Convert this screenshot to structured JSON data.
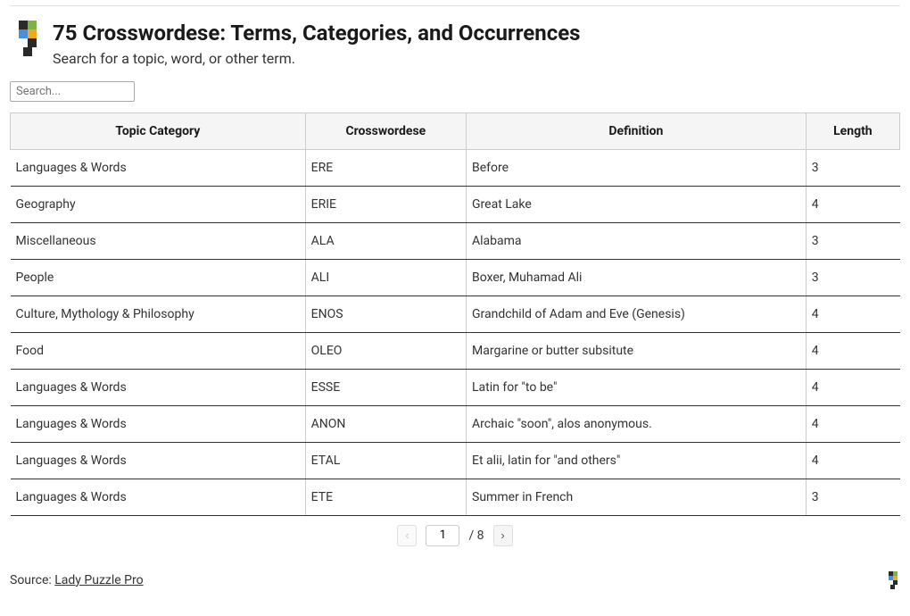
{
  "header": {
    "title": "75 Crosswordese: Terms, Categories, and Occurrences",
    "subtitle": "Search for a topic, word, or other term."
  },
  "search": {
    "placeholder": "Search...",
    "value": ""
  },
  "table": {
    "columns": [
      "Topic Category",
      "Crosswordese",
      "Definition",
      "Length"
    ],
    "rows": [
      [
        "Languages & Words",
        "ERE",
        "Before",
        "3"
      ],
      [
        "Geography",
        "ERIE",
        "Great Lake",
        "4"
      ],
      [
        "Miscellaneous",
        "ALA",
        "Alabama",
        "3"
      ],
      [
        "People",
        "ALI",
        "Boxer, Muhamad Ali",
        "3"
      ],
      [
        "Culture, Mythology & Philosophy",
        "ENOS",
        "Grandchild of Adam and Eve (Genesis)",
        "4"
      ],
      [
        "Food",
        "OLEO",
        "Margarine or butter subsitute",
        "4"
      ],
      [
        "Languages & Words",
        "ESSE",
        "Latin for \"to be\"",
        "4"
      ],
      [
        "Languages & Words",
        "ANON",
        "Archaic \"soon\", alos anonymous.",
        "4"
      ],
      [
        "Languages & Words",
        "ETAL",
        "Et alii, latin for \"and others\"",
        "4"
      ],
      [
        "Languages & Words",
        "ETE",
        "Summer in French",
        "3"
      ]
    ]
  },
  "pagination": {
    "prev_label": "‹",
    "next_label": "›",
    "current_page": "1",
    "total_label": "/ 8"
  },
  "footer": {
    "source_prefix": "Source: ",
    "source_link": "Lady Puzzle Pro"
  },
  "colors": {
    "header_bg": "#f5f5f5",
    "border": "#cccccc",
    "row_border": "#333333",
    "text": "#333333"
  }
}
